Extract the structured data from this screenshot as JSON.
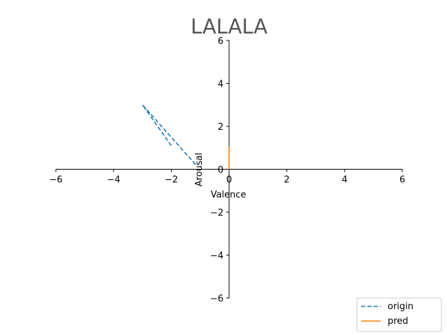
{
  "chart_data": {
    "type": "line",
    "title": "LALALA",
    "xlabel": "Valence",
    "ylabel": "Arousal",
    "xlim": [
      -6,
      6
    ],
    "ylim": [
      -6,
      6
    ],
    "xticks": [
      -6,
      -4,
      -2,
      0,
      2,
      4,
      6
    ],
    "yticks": [
      -6,
      -4,
      -2,
      0,
      2,
      4,
      6
    ],
    "xtick_labels": [
      "−6",
      "−4",
      "−2",
      "0",
      "2",
      "4",
      "6"
    ],
    "ytick_labels": [
      "−6",
      "−4",
      "−2",
      "0",
      "2",
      "4",
      "6"
    ],
    "grid": false,
    "spines": "centered at origin",
    "legend": {
      "placement": "lower-right"
    },
    "series": [
      {
        "name": "origin",
        "color": "#1f77b4",
        "style": "dashed",
        "x": [
          -2,
          -3,
          -1.15
        ],
        "y": [
          1.1,
          3.0,
          0.2
        ]
      },
      {
        "name": "pred",
        "color": "#ff7f0e",
        "style": "solid",
        "x": [
          0,
          0
        ],
        "y": [
          0,
          1.05
        ]
      }
    ]
  }
}
